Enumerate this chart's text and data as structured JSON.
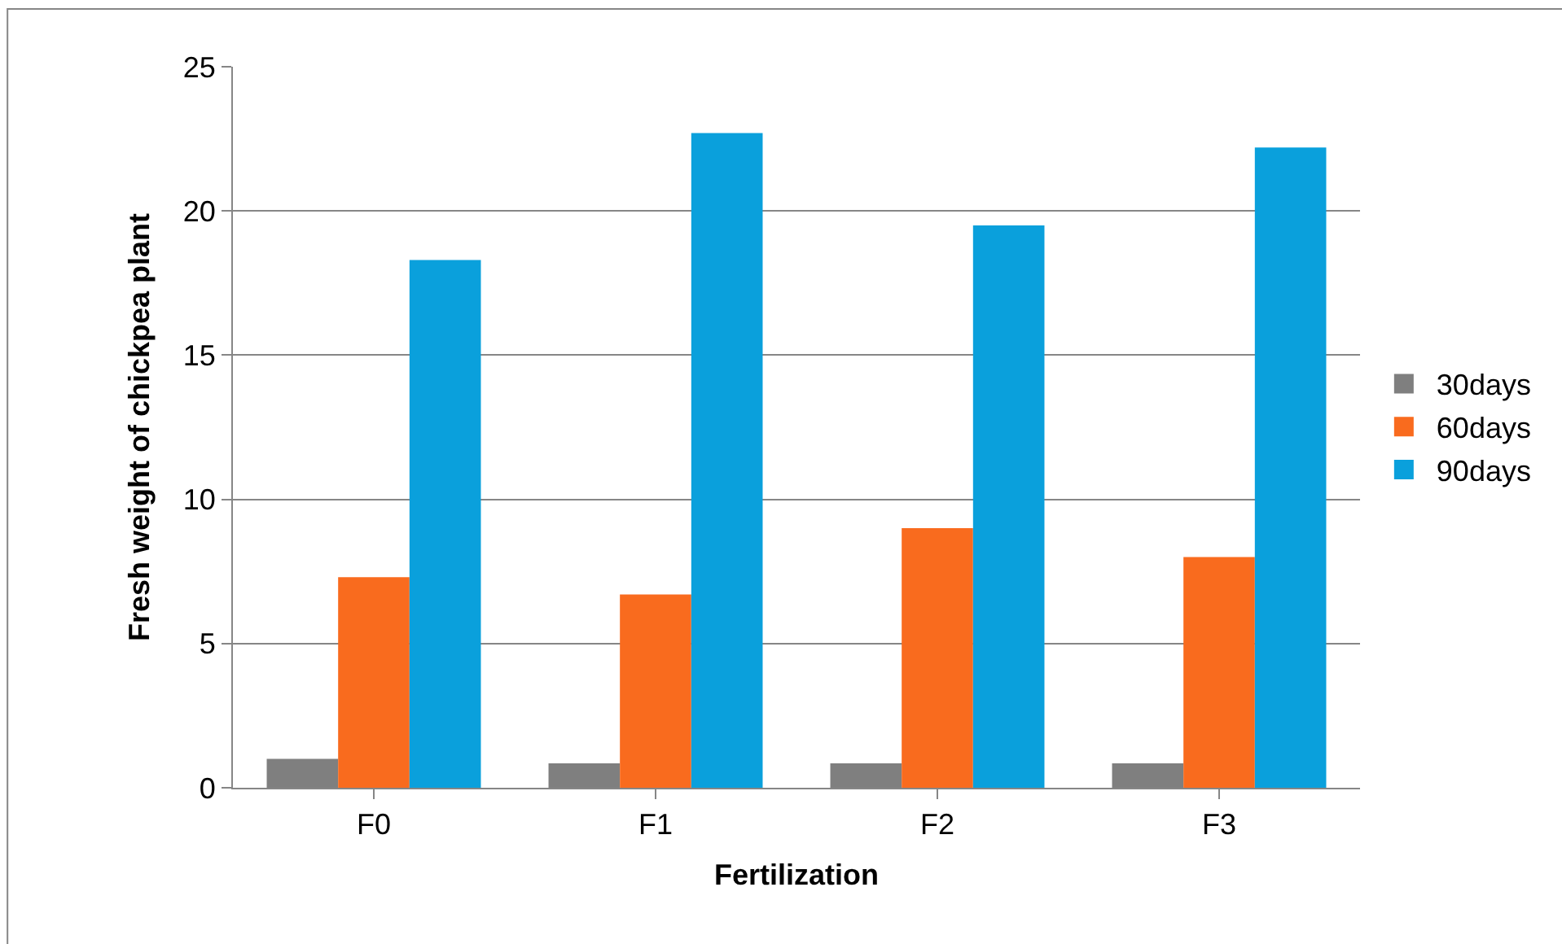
{
  "chart_data": {
    "type": "bar",
    "xlabel": "Fertilization",
    "ylabel": "Fresh weight of chickpea plant",
    "categories": [
      "F0",
      "F1",
      "F2",
      "F3"
    ],
    "series": [
      {
        "name": "30days",
        "color": "#7f7f7f",
        "values": [
          1.0,
          0.85,
          0.85,
          0.85
        ]
      },
      {
        "name": "60days",
        "color": "#f96b1e",
        "values": [
          7.3,
          6.7,
          9.0,
          8.0
        ]
      },
      {
        "name": "90days",
        "color": "#0aa0dc",
        "values": [
          18.3,
          22.7,
          19.5,
          22.2
        ]
      }
    ],
    "ylim": [
      0,
      25
    ],
    "yticks": [
      0,
      5,
      10,
      15,
      20,
      25
    ],
    "grid": "y",
    "legend": "right"
  }
}
